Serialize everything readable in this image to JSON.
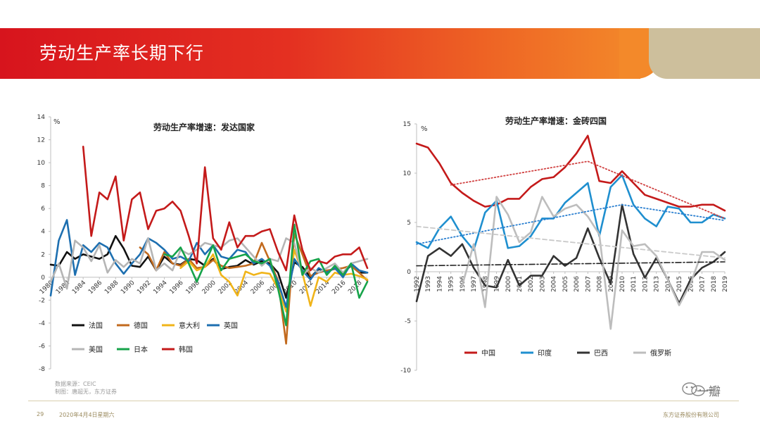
{
  "slide": {
    "title": "劳动生产率长期下行",
    "page_number": "29",
    "date": "2020年4月4日星期六",
    "company": "东方证券股份有限公司",
    "watermark_text": "一瓣",
    "colors": {
      "band_start": "#d7141d",
      "band_end": "#f3892a",
      "deco": "#cdbf9c"
    }
  },
  "chart_data": [
    {
      "type": "line",
      "title": "劳动生产率增速：发达国家",
      "unit": "%",
      "ylim": [
        -8,
        14
      ],
      "yticks": [
        -8,
        -6,
        -4,
        -2,
        0,
        2,
        4,
        6,
        8,
        10,
        12,
        14
      ],
      "xlim": [
        1980,
        2019
      ],
      "xticks": [
        1980,
        1982,
        1984,
        1986,
        1988,
        1990,
        1992,
        1994,
        1996,
        1998,
        2000,
        2002,
        2004,
        2006,
        2008,
        2010,
        2012,
        2014,
        2016,
        2018
      ],
      "source": [
        "数据来源：CEIC",
        "制图：唐超无，东方证券"
      ],
      "series": [
        {
          "name": "法国",
          "color": "#111111",
          "x": [
            1980,
            1981,
            1982,
            1983,
            1984,
            1985,
            1986,
            1987,
            1988,
            1989,
            1990,
            1991,
            1992,
            1993,
            1994,
            1995,
            1996,
            1997,
            1998,
            1999,
            2000,
            2001,
            2002,
            2003,
            2004,
            2005,
            2006,
            2007,
            2008,
            2009,
            2010,
            2011,
            2012,
            2013,
            2014,
            2015,
            2016,
            2017,
            2018,
            2019
          ],
          "y": [
            1.1,
            1.0,
            2.2,
            1.6,
            2.0,
            1.8,
            1.6,
            2.0,
            3.6,
            2.5,
            1.0,
            0.9,
            1.8,
            0.6,
            1.8,
            1.2,
            1.1,
            1.6,
            1.5,
            1.0,
            1.6,
            0.7,
            0.9,
            1.0,
            1.5,
            1.1,
            1.4,
            1.2,
            0.4,
            -1.8,
            1.3,
            0.9,
            0.0,
            0.7,
            0.5,
            0.8,
            0.4,
            1.0,
            0.4,
            0.4
          ]
        },
        {
          "name": "德国",
          "color": "#c26a1e",
          "x": [
            1991,
            1992,
            1993,
            1994,
            1995,
            1996,
            1997,
            1998,
            1999,
            2000,
            2001,
            2002,
            2003,
            2004,
            2005,
            2006,
            2007,
            2008,
            2009,
            2010,
            2011,
            2012,
            2013,
            2014,
            2015,
            2016,
            2017,
            2018,
            2019
          ],
          "y": [
            2.6,
            2.0,
            0.6,
            2.2,
            1.2,
            1.0,
            1.6,
            0.8,
            0.9,
            1.5,
            1.0,
            0.8,
            0.9,
            1.0,
            1.2,
            3.0,
            1.4,
            -0.3,
            -5.8,
            3.8,
            2.0,
            0.1,
            0.4,
            0.6,
            0.7,
            0.8,
            1.0,
            0.4,
            -0.3
          ]
        },
        {
          "name": "意大利",
          "color": "#f0b419",
          "x": [
            1996,
            1997,
            1998,
            1999,
            2000,
            2001,
            2002,
            2003,
            2004,
            2005,
            2006,
            2007,
            2008,
            2009,
            2010,
            2011,
            2012,
            2013,
            2014,
            2015,
            2016,
            2017,
            2018,
            2019
          ],
          "y": [
            0.8,
            1.4,
            0.6,
            0.9,
            2.0,
            0.2,
            -0.4,
            -1.6,
            0.5,
            0.2,
            0.4,
            0.3,
            -1.0,
            -3.0,
            2.4,
            0.4,
            -2.5,
            0.0,
            -0.4,
            0.4,
            0.2,
            0.3,
            0.1,
            -0.2
          ]
        },
        {
          "name": "英国",
          "color": "#1d6fb0",
          "x": [
            1980,
            1981,
            1982,
            1983,
            1984,
            1985,
            1986,
            1987,
            1988,
            1989,
            1990,
            1991,
            1992,
            1993,
            1994,
            1995,
            1996,
            1997,
            1998,
            1999,
            2000,
            2001,
            2002,
            2003,
            2004,
            2005,
            2006,
            2007,
            2008,
            2009,
            2010,
            2011,
            2012,
            2013,
            2014,
            2015,
            2016,
            2017,
            2018,
            2019
          ],
          "y": [
            -1.6,
            3.2,
            5.0,
            0.2,
            2.8,
            2.2,
            3.0,
            2.6,
            1.2,
            0.3,
            1.2,
            2.0,
            3.4,
            3.0,
            2.4,
            1.6,
            1.8,
            1.4,
            3.0,
            2.0,
            2.8,
            1.8,
            1.6,
            2.4,
            2.2,
            1.2,
            1.6,
            1.0,
            -0.4,
            -2.6,
            1.6,
            0.6,
            -0.2,
            0.8,
            0.4,
            0.8,
            0.0,
            1.2,
            0.6,
            0.4
          ]
        },
        {
          "name": "美国",
          "color": "#b5b5b5",
          "x": [
            1980,
            1981,
            1982,
            1983,
            1984,
            1985,
            1986,
            1987,
            1988,
            1989,
            1990,
            1991,
            1992,
            1993,
            1994,
            1995,
            1996,
            1997,
            1998,
            1999,
            2000,
            2001,
            2002,
            2003,
            2004,
            2005,
            2006,
            2007,
            2008,
            2009,
            2010,
            2011,
            2012,
            2013,
            2014,
            2015,
            2016,
            2017,
            2018,
            2019
          ],
          "y": [
            -0.4,
            1.2,
            -1.0,
            3.2,
            2.6,
            1.4,
            2.8,
            0.4,
            1.5,
            0.9,
            1.6,
            1.2,
            3.4,
            0.6,
            1.2,
            0.6,
            2.4,
            2.0,
            2.4,
            3.0,
            2.8,
            2.6,
            3.2,
            3.4,
            2.6,
            1.8,
            1.0,
            1.6,
            1.4,
            3.4,
            3.0,
            0.2,
            0.8,
            0.4,
            0.8,
            1.2,
            0.4,
            1.2,
            1.4,
            1.6
          ]
        },
        {
          "name": "日本",
          "color": "#16a34a",
          "x": [
            1994,
            1995,
            1996,
            1997,
            1998,
            1999,
            2000,
            2001,
            2002,
            2003,
            2004,
            2005,
            2006,
            2007,
            2008,
            2009,
            2010,
            2011,
            2012,
            2013,
            2014,
            2015,
            2016,
            2017,
            2018,
            2019
          ],
          "y": [
            2.0,
            1.8,
            2.6,
            1.2,
            -0.4,
            1.2,
            2.8,
            0.6,
            1.6,
            1.8,
            2.0,
            1.4,
            1.2,
            1.6,
            -1.0,
            -4.2,
            4.6,
            0.2,
            1.4,
            1.6,
            0.2,
            1.0,
            0.2,
            1.2,
            -1.8,
            -0.4
          ]
        },
        {
          "name": "韩国",
          "color": "#c41a1a",
          "x": [
            1984,
            1985,
            1986,
            1987,
            1988,
            1989,
            1990,
            1991,
            1992,
            1993,
            1994,
            1995,
            1996,
            1997,
            1998,
            1999,
            2000,
            2001,
            2002,
            2003,
            2004,
            2005,
            2006,
            2007,
            2008,
            2009,
            2010,
            2011,
            2012,
            2013,
            2014,
            2015,
            2016,
            2017,
            2018,
            2019
          ],
          "y": [
            11.4,
            3.6,
            7.4,
            6.8,
            8.8,
            3.2,
            6.8,
            7.4,
            4.2,
            5.8,
            6.0,
            6.6,
            5.8,
            3.6,
            1.2,
            9.6,
            3.4,
            2.4,
            4.8,
            2.6,
            3.6,
            3.6,
            4.0,
            4.2,
            2.2,
            0.6,
            5.4,
            2.4,
            0.6,
            1.4,
            1.2,
            1.8,
            2.0,
            2.0,
            2.6,
            0.8
          ]
        }
      ]
    },
    {
      "type": "line",
      "title": "劳动生产率增速：金砖四国",
      "unit": "%",
      "ylim": [
        -10,
        15
      ],
      "yticks": [
        -10,
        -5,
        0,
        5,
        10,
        15
      ],
      "xlim": [
        1992,
        2019
      ],
      "xticks": [
        1992,
        1993,
        1994,
        1995,
        1996,
        1997,
        1998,
        1999,
        2000,
        2001,
        2002,
        2003,
        2004,
        2005,
        2006,
        2007,
        2008,
        2009,
        2010,
        2011,
        2012,
        2013,
        2014,
        2015,
        2016,
        2017,
        2018,
        2019
      ],
      "series": [
        {
          "name": "中国",
          "color": "#c41a1a",
          "x": [
            1992,
            1993,
            1994,
            1995,
            1996,
            1997,
            1998,
            1999,
            2000,
            2001,
            2002,
            2003,
            2004,
            2005,
            2006,
            2007,
            2008,
            2009,
            2010,
            2011,
            2012,
            2013,
            2014,
            2015,
            2016,
            2017,
            2018,
            2019
          ],
          "y": [
            13.0,
            12.6,
            11.0,
            9.0,
            8.0,
            7.2,
            6.6,
            6.8,
            7.4,
            7.4,
            8.6,
            9.4,
            9.6,
            10.6,
            12.0,
            13.8,
            9.2,
            9.0,
            10.2,
            9.0,
            7.8,
            7.4,
            7.0,
            6.6,
            6.6,
            6.8,
            6.8,
            6.2
          ]
        },
        {
          "name": "印度",
          "color": "#1f8fcf",
          "x": [
            1992,
            1993,
            1994,
            1995,
            1996,
            1997,
            1998,
            1999,
            2000,
            2001,
            2002,
            2003,
            2004,
            2005,
            2006,
            2007,
            2008,
            2009,
            2010,
            2011,
            2012,
            2013,
            2014,
            2015,
            2016,
            2017,
            2018,
            2019
          ],
          "y": [
            3.0,
            2.4,
            4.4,
            5.6,
            3.6,
            2.2,
            6.0,
            7.2,
            2.4,
            2.6,
            3.6,
            5.4,
            5.4,
            7.0,
            8.0,
            9.0,
            3.6,
            8.6,
            9.8,
            6.8,
            5.4,
            4.6,
            6.6,
            6.4,
            5.0,
            5.0,
            5.8,
            5.4
          ]
        },
        {
          "name": "巴西",
          "color": "#333333",
          "x": [
            1992,
            1993,
            1994,
            1995,
            1996,
            1997,
            1998,
            1999,
            2000,
            2001,
            2002,
            2003,
            2004,
            2005,
            2006,
            2007,
            2008,
            2009,
            2010,
            2011,
            2012,
            2013,
            2014,
            2015,
            2016,
            2017,
            2018,
            2019
          ],
          "y": [
            -3.0,
            1.6,
            2.4,
            1.6,
            2.8,
            0.4,
            -1.4,
            -1.6,
            1.2,
            -1.4,
            -0.4,
            -0.4,
            1.6,
            0.6,
            1.4,
            4.4,
            1.4,
            -1.2,
            6.8,
            1.8,
            -0.6,
            1.4,
            -0.8,
            -3.2,
            -0.8,
            0.4,
            1.0,
            2.0
          ]
        },
        {
          "name": "俄罗斯",
          "color": "#bdbdbd",
          "x": [
            1996,
            1997,
            1998,
            1999,
            2000,
            2001,
            2002,
            2003,
            2004,
            2005,
            2006,
            2007,
            2008,
            2009,
            2010,
            2011,
            2012,
            2013,
            2014,
            2015,
            2016,
            2017,
            2018,
            2019
          ],
          "y": [
            -1.4,
            2.8,
            -3.6,
            7.6,
            5.8,
            3.0,
            4.0,
            7.6,
            5.6,
            6.4,
            6.8,
            5.6,
            3.8,
            -5.8,
            4.2,
            2.6,
            2.8,
            1.6,
            -0.8,
            -3.4,
            -1.2,
            2.0,
            2.0,
            1.2
          ]
        },
        {
          "name": "",
          "color": "#d04040",
          "dotted": true,
          "x": [
            1995,
            2007,
            2019
          ],
          "y": [
            8.8,
            11.2,
            5.4
          ]
        },
        {
          "name": "",
          "color": "#2a7fd0",
          "dotted": true,
          "x": [
            1992,
            2010,
            2019
          ],
          "y": [
            2.8,
            6.8,
            5.2
          ]
        },
        {
          "name": "",
          "color": "#c9c9c9",
          "dashed": true,
          "x": [
            1992,
            2019
          ],
          "y": [
            4.6,
            1.4
          ]
        },
        {
          "name": "",
          "color": "#222222",
          "dashdot": true,
          "x": [
            1992,
            2019
          ],
          "y": [
            0.6,
            1.0
          ]
        }
      ]
    }
  ]
}
